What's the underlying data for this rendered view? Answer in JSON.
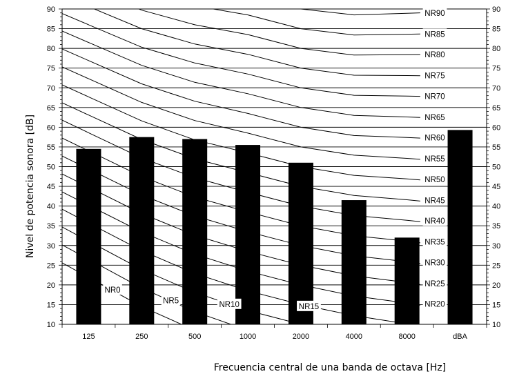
{
  "chart_data": {
    "type": "bar",
    "categories": [
      "125",
      "250",
      "500",
      "1000",
      "2000",
      "4000",
      "8000",
      "dBA"
    ],
    "values": [
      54.5,
      57.5,
      57,
      55.5,
      51,
      41.5,
      32,
      59.3
    ],
    "xlabel": "Frecuencia central de una banda de octava [Hz]",
    "ylabel": "Nivel de potencia sonora [dB]",
    "ylim": [
      10,
      90
    ],
    "yticks": [
      10,
      15,
      20,
      25,
      30,
      35,
      40,
      45,
      50,
      55,
      60,
      65,
      70,
      75,
      80,
      85,
      90
    ],
    "grid": true,
    "bar_color": "#000000",
    "nr_curves": [
      {
        "name": "NR0",
        "values": [
          21.9,
          14.5,
          8.5,
          3.5,
          0,
          -3.1,
          -5.6
        ]
      },
      {
        "name": "NR5",
        "values": [
          26.5,
          19.2,
          13.2,
          8.5,
          5,
          2,
          -0.4
        ]
      },
      {
        "name": "NR10",
        "values": [
          31.1,
          23.9,
          18.1,
          13.5,
          10,
          7.1,
          4.9
        ]
      },
      {
        "name": "NR15",
        "values": [
          35.7,
          28.7,
          22.9,
          18.5,
          15,
          12.2,
          10.1
        ]
      },
      {
        "name": "NR20",
        "values": [
          40.2,
          33.4,
          27.8,
          23.5,
          20,
          17.2,
          15.4
        ]
      },
      {
        "name": "NR25",
        "values": [
          44.8,
          38.1,
          32.6,
          28.5,
          25,
          22.3,
          20.6
        ]
      },
      {
        "name": "NR30",
        "values": [
          49.4,
          42.8,
          37.5,
          33.5,
          30,
          27.4,
          25.9
        ]
      },
      {
        "name": "NR35",
        "values": [
          54.0,
          47.5,
          42.3,
          38.5,
          35,
          32.5,
          31.1
        ]
      },
      {
        "name": "NR40",
        "values": [
          58.6,
          52.2,
          47.2,
          43.5,
          40,
          37.6,
          36.4
        ]
      },
      {
        "name": "NR45",
        "values": [
          63.1,
          56.9,
          52.0,
          48.5,
          45,
          42.7,
          41.6
        ]
      },
      {
        "name": "NR50",
        "values": [
          67.7,
          61.6,
          56.8,
          53.5,
          50,
          47.8,
          46.9
        ]
      },
      {
        "name": "NR55",
        "values": [
          72.3,
          66.3,
          61.7,
          58.5,
          55,
          52.9,
          52.1
        ]
      },
      {
        "name": "NR60",
        "values": [
          76.9,
          71.0,
          66.6,
          63.5,
          60,
          57.9,
          57.4
        ]
      },
      {
        "name": "NR65",
        "values": [
          81.5,
          75.7,
          71.4,
          68.5,
          65,
          63.0,
          62.6
        ]
      },
      {
        "name": "NR70",
        "values": [
          86.0,
          80.3,
          76.3,
          73.5,
          70,
          68.1,
          67.9
        ]
      },
      {
        "name": "NR75",
        "values": [
          90.6,
          85.0,
          81.1,
          78.5,
          75,
          73.2,
          73.1
        ]
      },
      {
        "name": "NR80",
        "values": [
          95.2,
          89.7,
          86.0,
          83.5,
          80,
          78.3,
          78.4
        ]
      },
      {
        "name": "NR85",
        "values": [
          99.8,
          94.4,
          90.8,
          88.5,
          85,
          83.4,
          83.6
        ]
      },
      {
        "name": "NR90",
        "values": [
          104.4,
          99.1,
          95.7,
          93.5,
          90,
          88.5,
          88.9
        ]
      }
    ]
  }
}
